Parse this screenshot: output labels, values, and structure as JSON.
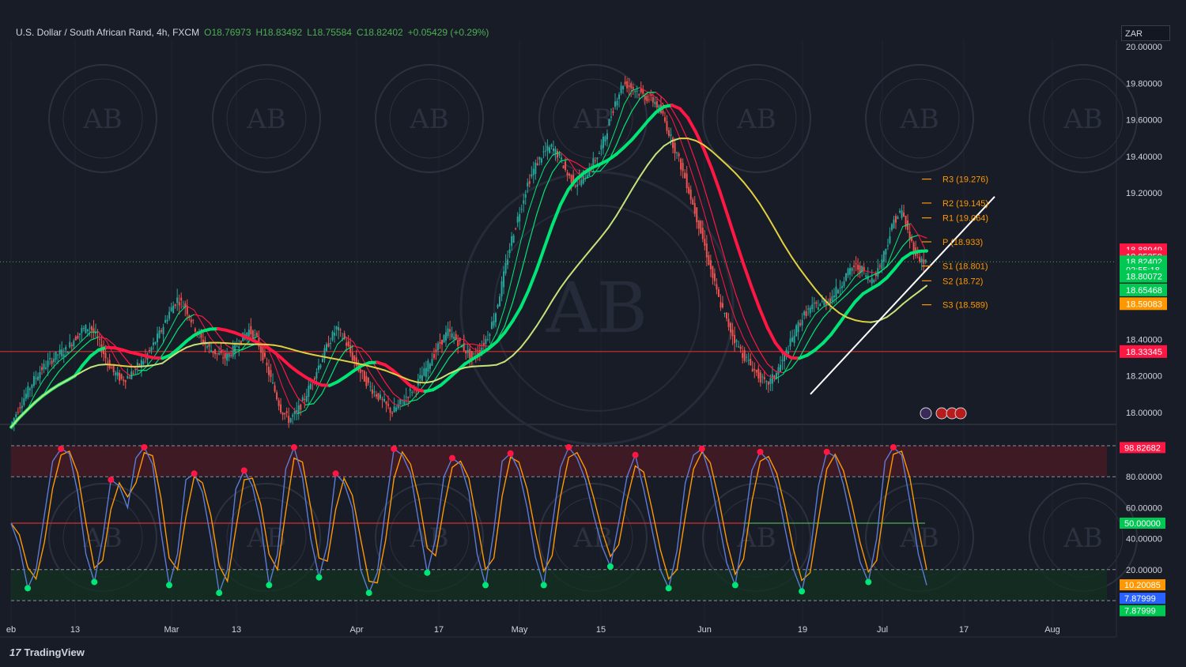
{
  "header": {
    "symbol": "U.S. Dollar / South African Rand, 4h, FXCM",
    "open": "O18.76973",
    "high": "H18.83492",
    "low": "L18.75584",
    "close": "C18.82402",
    "change": "+0.05429 (+0.29%)"
  },
  "currency": "ZAR",
  "brand": "TradingView",
  "colors": {
    "background": "#181c27",
    "up": "#00e676",
    "down": "#ff1744",
    "pivot": "#ff9800",
    "trend": "#ffffff",
    "stoch_k": "#5b7bd5",
    "stoch_d": "#ff9800"
  },
  "chart_data": [
    {
      "type": "line",
      "pane": "price",
      "ylim": [
        17.95,
        20.05
      ],
      "y_ticks": [
        "20.00000",
        "19.80000",
        "19.60000",
        "19.40000",
        "19.20000",
        "18.40000",
        "18.20000",
        "18.00000"
      ],
      "x_ticks": [
        "eb",
        "13",
        "Mar",
        "13",
        "Apr",
        "17",
        "May",
        "15",
        "Jun",
        "19",
        "Jul",
        "17",
        "Aug"
      ],
      "series": [
        {
          "values": [
            17.92,
            18.02,
            18.1,
            18.18,
            18.24,
            18.28,
            18.32,
            18.34,
            18.4,
            18.45,
            18.47,
            18.4,
            18.3,
            18.22,
            18.18,
            18.2,
            18.25,
            18.3,
            18.37,
            18.45,
            18.55,
            18.62,
            18.58,
            18.48,
            18.4,
            18.35,
            18.32,
            18.3,
            18.34,
            18.4,
            18.45,
            18.4,
            18.28,
            18.15,
            18.02,
            17.96,
            18.0,
            18.08,
            18.18,
            18.28,
            18.38,
            18.46,
            18.4,
            18.3,
            18.22,
            18.15,
            18.1,
            18.05,
            18.0,
            18.05,
            18.1,
            18.15,
            18.22,
            18.3,
            18.38,
            18.44,
            18.4,
            18.35,
            18.3,
            18.34,
            18.42,
            18.55,
            18.75,
            18.95,
            19.1,
            19.25,
            19.35,
            19.42,
            19.45,
            19.4,
            19.3,
            19.25,
            19.28,
            19.35,
            19.42,
            19.55,
            19.7,
            19.8,
            19.78,
            19.75,
            19.72,
            19.7,
            19.62,
            19.5,
            19.38,
            19.25,
            19.1,
            18.95,
            18.78,
            18.62,
            18.5,
            18.4,
            18.32,
            18.26,
            18.2,
            18.15,
            18.2,
            18.28,
            18.38,
            18.48,
            18.55,
            18.58,
            18.6,
            18.62,
            18.68,
            18.75,
            18.8,
            18.78,
            18.72,
            18.78,
            18.9,
            19.05,
            19.1,
            18.95,
            18.85,
            18.82
          ]
        }
      ]
    },
    {
      "type": "line",
      "pane": "stochastic",
      "ylim": [
        0,
        100
      ],
      "y_ticks": [
        "80.00000",
        "60.00000",
        "40.00000",
        "20.00000"
      ],
      "series": [
        {
          "values": [
            50,
            35,
            8,
            20,
            55,
            90,
            98,
            95,
            70,
            30,
            12,
            40,
            78,
            74,
            60,
            92,
            99,
            88,
            45,
            10,
            30,
            78,
            82,
            70,
            40,
            5,
            20,
            72,
            84,
            74,
            50,
            10,
            30,
            85,
            99,
            80,
            40,
            15,
            36,
            82,
            76,
            60,
            20,
            5,
            18,
            60,
            98,
            94,
            82,
            50,
            18,
            40,
            80,
            92,
            88,
            70,
            30,
            10,
            45,
            90,
            95,
            84,
            60,
            28,
            10,
            48,
            86,
            99,
            92,
            78,
            55,
            35,
            22,
            50,
            80,
            94,
            72,
            46,
            20,
            8,
            32,
            76,
            94,
            98,
            80,
            52,
            24,
            10,
            44,
            84,
            96,
            90,
            74,
            46,
            20,
            6,
            30,
            74,
            96,
            93,
            75,
            50,
            25,
            12,
            40,
            90,
            99,
            94,
            64,
            30,
            10
          ]
        }
      ],
      "level_labels": {
        "top": "98.82682",
        "mid": "50.00000",
        "k": "10.20085",
        "d1": "7.87999",
        "d2": "7.87999"
      }
    }
  ],
  "price_tags": [
    {
      "label": "18.88949",
      "value": 18.88949,
      "color": "#ff1744"
    },
    {
      "label": "18.85359",
      "value": 18.85359,
      "color": "#ff1744"
    },
    {
      "label": "18.82402",
      "value": 18.82402,
      "color": "#00c853"
    },
    {
      "label": "02:55:18",
      "value": 18.78,
      "color": "#00c853"
    },
    {
      "label": "18.80072",
      "value": 18.745,
      "color": "#00c853"
    },
    {
      "label": "18.65468",
      "value": 18.67,
      "color": "#00c853"
    },
    {
      "label": "18.59083",
      "value": 18.595,
      "color": "#ff9800"
    },
    {
      "label": "18.33345",
      "value": 18.33345,
      "color": "#ff1744"
    }
  ],
  "pivots": [
    {
      "label": "R3 (19.276)",
      "value": 19.276
    },
    {
      "label": "R2 (19.145)",
      "value": 19.145
    },
    {
      "label": "R1 (19.064)",
      "value": 19.064
    },
    {
      "label": "P (18.933)",
      "value": 18.933
    },
    {
      "label": "S1 (18.801)",
      "value": 18.801
    },
    {
      "label": "S2 (18.72)",
      "value": 18.72
    },
    {
      "label": "S3 (18.589)",
      "value": 18.589
    }
  ],
  "watermark": {
    "text": "AB",
    "ring": "ARABIAN BUSINESS ACADEMY"
  }
}
